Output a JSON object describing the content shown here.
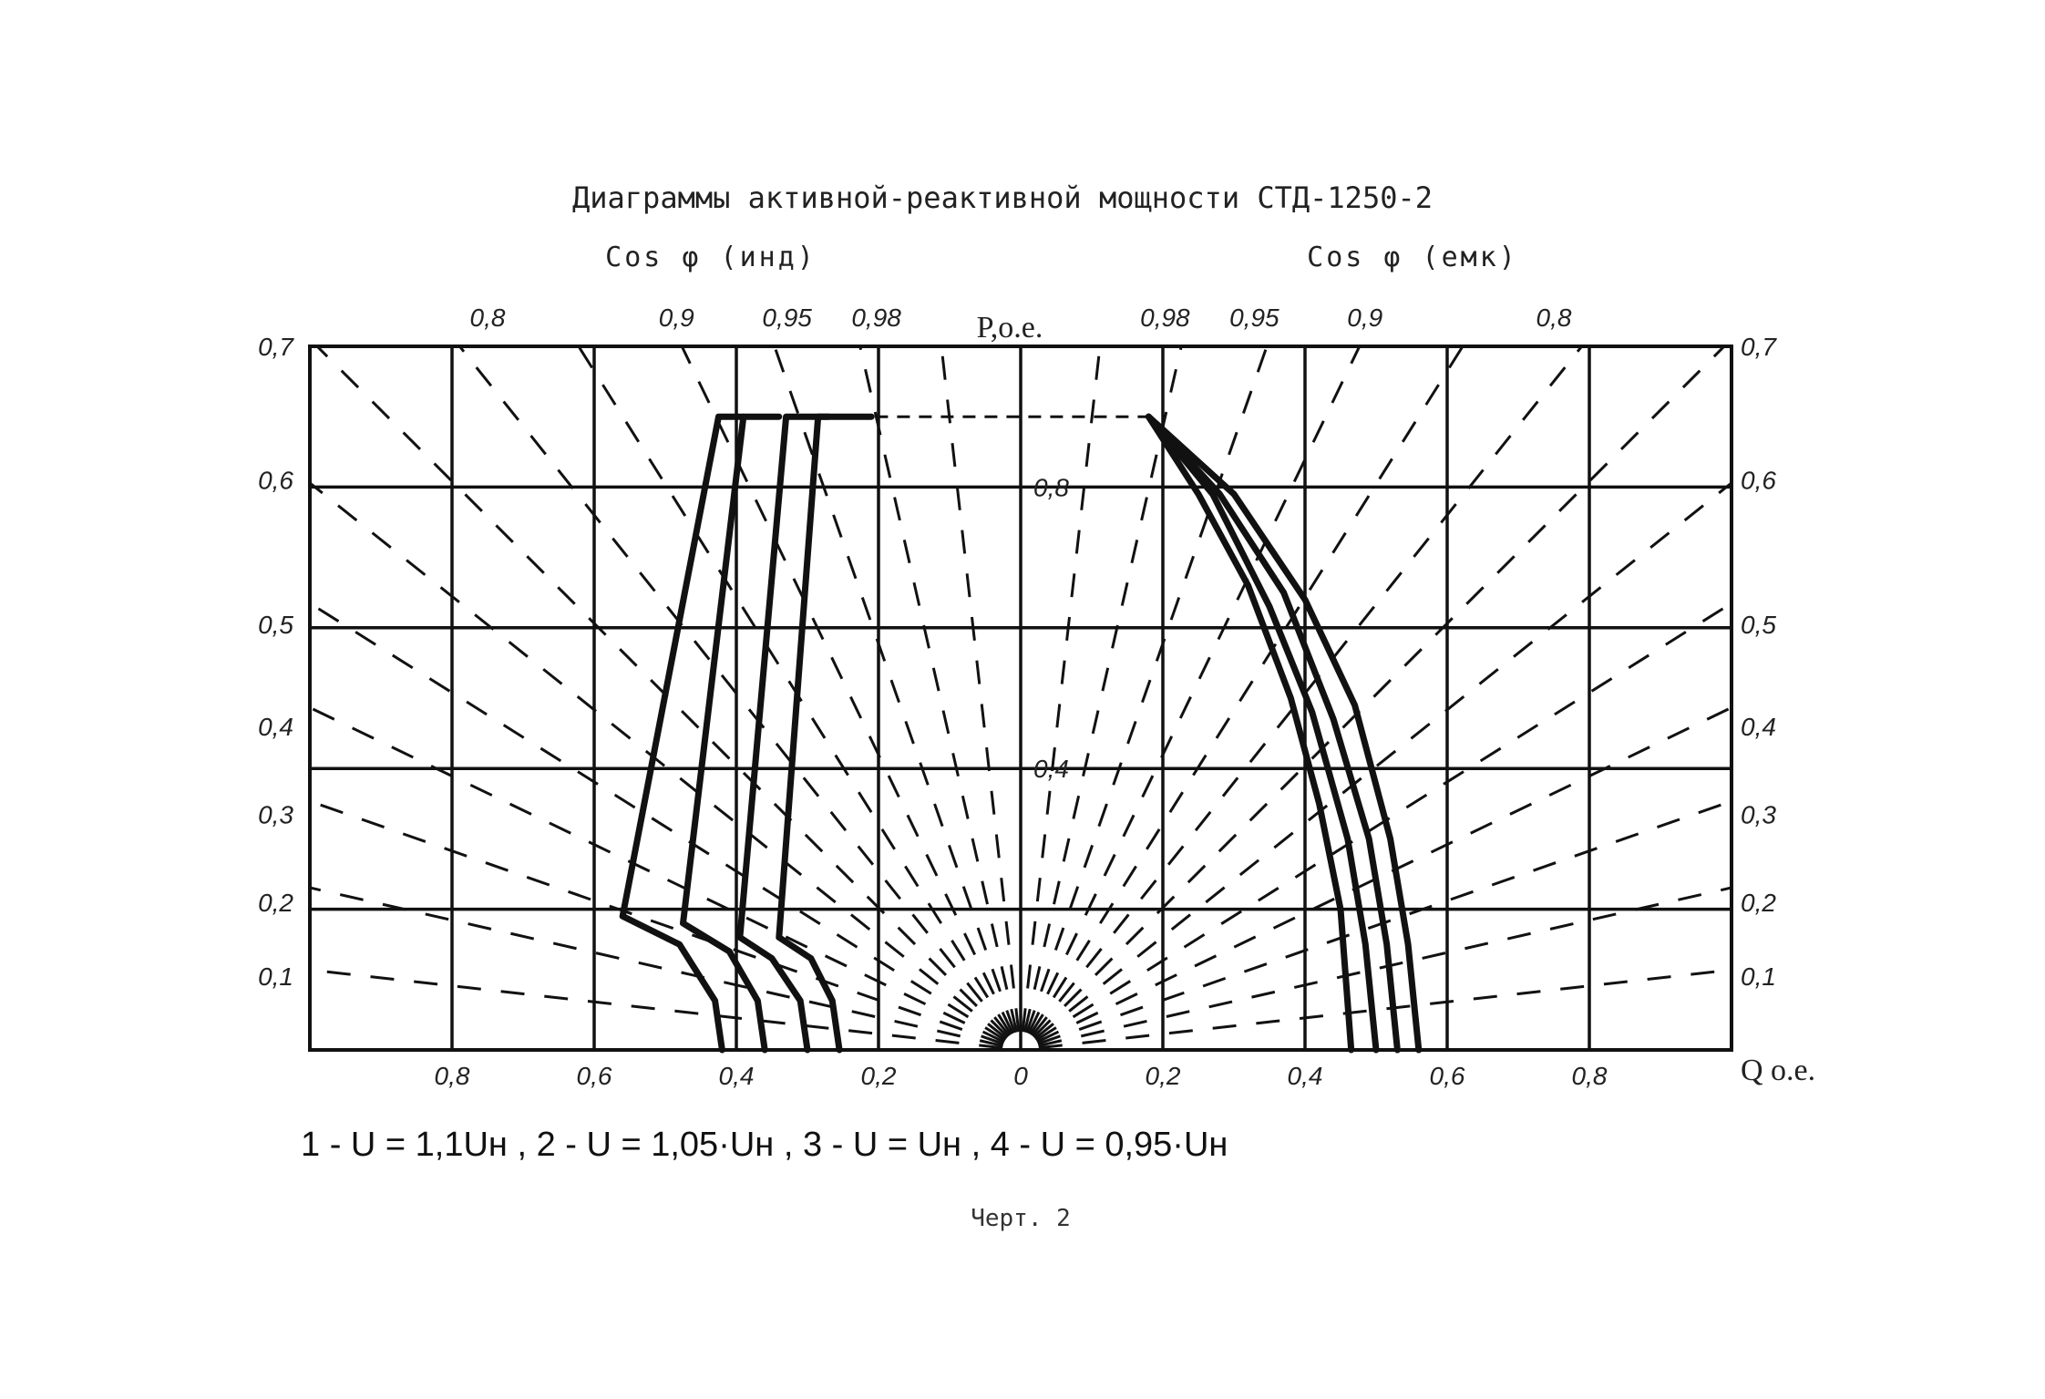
{
  "chart_data": {
    "type": "line",
    "title": "Диаграммы активной-реактивной мощности СТД-1250-2",
    "header_left": "Cos φ (инд)",
    "header_right": "Cos φ (емк)",
    "ylabel": "P,о.е.",
    "xlabel": "Q о.е.",
    "xlim": [
      -1.0,
      1.0
    ],
    "ylim": [
      0,
      1.0
    ],
    "top_cos_labels_left": [
      {
        "label": "0,8",
        "cos": 0.8
      },
      {
        "label": "0,9",
        "cos": 0.9
      },
      {
        "label": "0,95",
        "cos": 0.95
      },
      {
        "label": "0,98",
        "cos": 0.98
      }
    ],
    "top_cos_labels_right": [
      {
        "label": "0,98",
        "cos": 0.98
      },
      {
        "label": "0,95",
        "cos": 0.95
      },
      {
        "label": "0,9",
        "cos": 0.9
      },
      {
        "label": "0,8",
        "cos": 0.8
      }
    ],
    "x_tick_labels": [
      {
        "label": "0,8",
        "value": -0.8
      },
      {
        "label": "0,6",
        "value": -0.6
      },
      {
        "label": "0,4",
        "value": -0.4
      },
      {
        "label": "0,2",
        "value": -0.2
      },
      {
        "label": "0",
        "value": 0.0
      },
      {
        "label": "0,2",
        "value": 0.2
      },
      {
        "label": "0,4",
        "value": 0.4
      },
      {
        "label": "0,6",
        "value": 0.6
      },
      {
        "label": "0,8",
        "value": 0.8
      }
    ],
    "center_p_labels": [
      {
        "label": "0,8",
        "value": 0.8
      },
      {
        "label": "0,4",
        "value": 0.4
      }
    ],
    "side_labels": [
      "0,7",
      "0,6",
      "0,5",
      "0,4",
      "0,3",
      "0,2",
      "0,1"
    ],
    "side_label_p": [
      1.0,
      0.81,
      0.605,
      0.46,
      0.335,
      0.21,
      0.105
    ],
    "rated_power_limit_p": 0.9,
    "series": [
      {
        "name": "1",
        "points": [
          [
            -0.42,
            0.0
          ],
          [
            -0.43,
            0.07
          ],
          [
            -0.48,
            0.15
          ],
          [
            -0.56,
            0.19
          ],
          [
            -0.425,
            0.9
          ],
          [
            -0.4,
            0.9
          ],
          [
            -0.39,
            0.9
          ]
        ]
      },
      {
        "name": "2",
        "points": [
          [
            -0.36,
            0.0
          ],
          [
            -0.37,
            0.07
          ],
          [
            -0.41,
            0.14
          ],
          [
            -0.475,
            0.18
          ],
          [
            -0.39,
            0.9
          ],
          [
            -0.34,
            0.9
          ]
        ]
      },
      {
        "name": "3",
        "points": [
          [
            -0.3,
            0.0
          ],
          [
            -0.31,
            0.07
          ],
          [
            -0.35,
            0.13
          ],
          [
            -0.395,
            0.16
          ],
          [
            -0.33,
            0.9
          ],
          [
            -0.27,
            0.9
          ]
        ]
      },
      {
        "name": "4",
        "points": [
          [
            -0.255,
            0.0
          ],
          [
            -0.265,
            0.07
          ],
          [
            -0.295,
            0.13
          ],
          [
            -0.34,
            0.16
          ],
          [
            -0.285,
            0.9
          ],
          [
            -0.21,
            0.9
          ]
        ]
      },
      {
        "name": "1",
        "points": [
          [
            0.18,
            0.9
          ],
          [
            0.25,
            0.79
          ],
          [
            0.32,
            0.66
          ],
          [
            0.38,
            0.5
          ],
          [
            0.42,
            0.35
          ],
          [
            0.45,
            0.2
          ],
          [
            0.465,
            0.0
          ]
        ]
      },
      {
        "name": "2",
        "points": [
          [
            0.18,
            0.9
          ],
          [
            0.27,
            0.79
          ],
          [
            0.35,
            0.63
          ],
          [
            0.41,
            0.48
          ],
          [
            0.46,
            0.3
          ],
          [
            0.485,
            0.15
          ],
          [
            0.5,
            0.0
          ]
        ]
      },
      {
        "name": "3",
        "points": [
          [
            0.18,
            0.9
          ],
          [
            0.28,
            0.79
          ],
          [
            0.37,
            0.65
          ],
          [
            0.44,
            0.47
          ],
          [
            0.49,
            0.3
          ],
          [
            0.515,
            0.15
          ],
          [
            0.53,
            0.0
          ]
        ]
      },
      {
        "name": "4",
        "points": [
          [
            0.18,
            0.9
          ],
          [
            0.3,
            0.79
          ],
          [
            0.4,
            0.64
          ],
          [
            0.47,
            0.49
          ],
          [
            0.52,
            0.3
          ],
          [
            0.545,
            0.15
          ],
          [
            0.56,
            0.0
          ]
        ]
      }
    ],
    "legend_text": "1 - U = 1,1Uн , 2 - U = 1,05·Uн , 3 - U = Uн , 4 - U = 0,95·Uн",
    "caption": "Черт. 2",
    "grid": true
  }
}
